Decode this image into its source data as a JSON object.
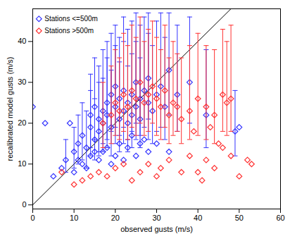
{
  "chart_data": {
    "type": "scatter",
    "x_label": "observed gusts (m/s)",
    "y_label": "recalibrated model gusts (m/s)",
    "xlim": [
      0,
      60
    ],
    "ylim": [
      -1,
      48
    ],
    "xticks": [
      0,
      10,
      20,
      30,
      40,
      50,
      60
    ],
    "yticks": [
      0,
      10,
      20,
      30,
      40
    ],
    "legend": "top-left",
    "lines": [
      {
        "x": [
          0,
          60
        ],
        "y": [
          0,
          60
        ],
        "color": "#000000"
      }
    ],
    "series": [
      {
        "name": "Stations <=500m",
        "color": "#3333ff",
        "marker": "diamond",
        "x": [
          8,
          10,
          11,
          12,
          13,
          14,
          14,
          15,
          15,
          16,
          16,
          17,
          17,
          18,
          18,
          19,
          19,
          20,
          20,
          21,
          21,
          22,
          22,
          23,
          23,
          24,
          24,
          25,
          25,
          26,
          26,
          27,
          28,
          28,
          29,
          30,
          31,
          32,
          33,
          35,
          38,
          42,
          49,
          5,
          7,
          9,
          10,
          11,
          12,
          13,
          14,
          15,
          16,
          17,
          18,
          19,
          20,
          21,
          22,
          23,
          24,
          25,
          26,
          27,
          28,
          30,
          33,
          0,
          3,
          50
        ],
        "values": [
          11,
          13,
          15,
          17,
          14,
          19,
          22,
          16,
          24,
          18,
          21,
          23,
          20,
          25,
          22,
          19,
          27,
          24,
          29,
          21,
          26,
          23,
          28,
          25,
          20,
          27,
          22,
          30,
          24,
          26,
          21,
          28,
          25,
          31,
          23,
          27,
          29,
          24,
          33,
          27,
          30,
          22,
          18,
          7,
          9,
          20,
          8,
          11,
          10,
          9,
          12,
          13,
          11,
          13,
          14,
          10,
          12,
          15,
          11,
          14,
          17,
          12,
          15,
          16,
          13,
          15,
          13,
          24,
          20,
          19
        ],
        "error_low": [
          8,
          9,
          10,
          11,
          9,
          12,
          14,
          11,
          16,
          12,
          13,
          15,
          13,
          16,
          14,
          12,
          18,
          15,
          19,
          13,
          17,
          15,
          19,
          16,
          13,
          18,
          14,
          20,
          16,
          17,
          14,
          19,
          16,
          21,
          15,
          18,
          19,
          16,
          22,
          18,
          20,
          14,
          12,
          null,
          null,
          null,
          null,
          null,
          null,
          null,
          null,
          null,
          null,
          null,
          null,
          null,
          null,
          null,
          null,
          null,
          null,
          null,
          null,
          null,
          null,
          null,
          null,
          null,
          null,
          null
        ],
        "error_high": [
          16,
          19,
          22,
          25,
          23,
          28,
          32,
          26,
          36,
          30,
          34,
          38,
          31,
          40,
          36,
          33,
          42,
          39,
          44,
          35,
          41,
          40,
          46,
          43,
          34,
          45,
          37,
          47,
          40,
          44,
          36,
          46,
          42,
          47,
          39,
          45,
          47,
          41,
          47,
          44,
          46,
          38,
          28,
          null,
          null,
          null,
          null,
          null,
          null,
          null,
          null,
          null,
          null,
          null,
          null,
          null,
          null,
          null,
          null,
          null,
          null,
          null,
          null,
          null,
          null,
          null,
          null,
          null,
          null,
          null
        ]
      },
      {
        "name": "Stations >500m",
        "color": "#ff3030",
        "marker": "diamond",
        "x": [
          17,
          19,
          20,
          21,
          22,
          23,
          24,
          25,
          26,
          27,
          28,
          29,
          30,
          31,
          32,
          34,
          36,
          38,
          40,
          42,
          44,
          46,
          47,
          48,
          33,
          35,
          7,
          10,
          12,
          14,
          16,
          18,
          20,
          22,
          24,
          26,
          28,
          30,
          31,
          33,
          36,
          38,
          40,
          42,
          44,
          45,
          46,
          48,
          50,
          52,
          53,
          41,
          39,
          43
        ],
        "values": [
          20,
          22,
          25,
          23,
          27,
          24,
          28,
          26,
          30,
          25,
          27,
          29,
          26,
          24,
          28,
          25,
          21,
          23,
          26,
          24,
          22,
          27,
          25,
          26,
          22,
          24,
          8,
          5,
          6,
          7,
          8,
          7,
          9,
          10,
          6,
          8,
          10,
          7,
          9,
          11,
          8,
          12,
          8,
          11,
          9,
          15,
          14,
          12,
          7,
          11,
          10,
          6,
          18,
          19
        ],
        "error_low": [
          14,
          15,
          17,
          16,
          18,
          16,
          19,
          17,
          20,
          17,
          18,
          20,
          17,
          16,
          19,
          17,
          15,
          16,
          17,
          16,
          15,
          18,
          17,
          18,
          15,
          18,
          null,
          null,
          null,
          null,
          null,
          null,
          null,
          null,
          null,
          null,
          null,
          null,
          null,
          null,
          null,
          null,
          null,
          null,
          null,
          null,
          null,
          null,
          null,
          null,
          null,
          null,
          null,
          null
        ],
        "error_high": [
          30,
          34,
          38,
          36,
          42,
          39,
          44,
          41,
          46,
          40,
          43,
          45,
          41,
          38,
          44,
          40,
          36,
          39,
          42,
          39,
          38,
          43,
          40,
          44,
          36,
          37,
          null,
          null,
          null,
          null,
          null,
          null,
          null,
          null,
          null,
          null,
          null,
          null,
          null,
          null,
          null,
          null,
          null,
          null,
          null,
          null,
          null,
          null,
          null,
          null,
          null,
          null,
          null,
          null
        ]
      }
    ]
  }
}
